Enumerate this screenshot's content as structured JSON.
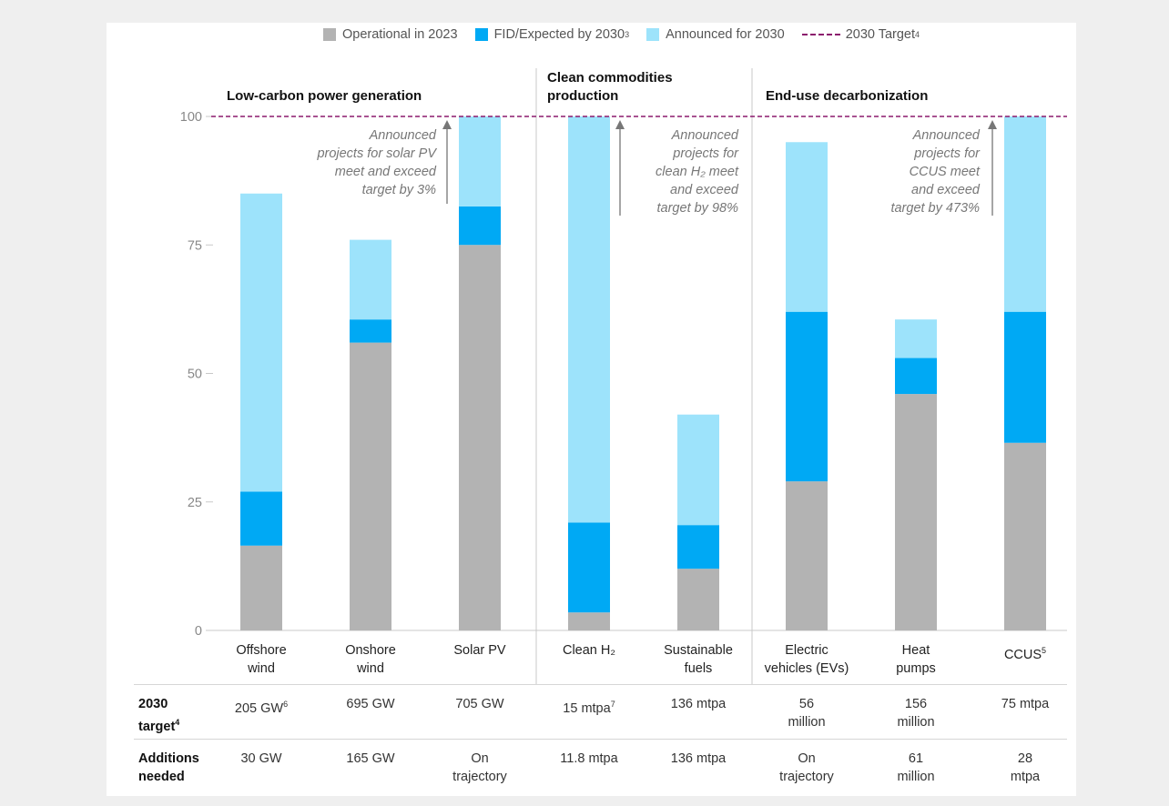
{
  "legend": {
    "operational": "Operational in 2023",
    "fid": "FID/Expected by 2030",
    "fid_sup": "3",
    "announced": "Announced for 2030",
    "target": "2030 Target",
    "target_sup": "4"
  },
  "groups": [
    {
      "title": "Low-carbon power generation"
    },
    {
      "title_line1": "Clean commodities",
      "title_line2": "production"
    },
    {
      "title": "End-use decarbonization"
    }
  ],
  "annotations": [
    [
      "Announced",
      "projects for solar PV",
      "meet and exceed",
      "target by 3%"
    ],
    [
      "Announced",
      "projects for",
      "clean H₂ meet",
      "and exceed",
      "target by 98%"
    ],
    [
      "Announced",
      "projects for",
      "CCUS meet",
      "and exceed",
      "target by 473%"
    ]
  ],
  "categories": [
    {
      "line1": "Offshore",
      "line2": "wind"
    },
    {
      "line1": "Onshore",
      "line2": "wind"
    },
    {
      "line1": "Solar PV",
      "line2": ""
    },
    {
      "line1": "Clean H₂",
      "line2": ""
    },
    {
      "line1": "Sustainable",
      "line2": "fuels"
    },
    {
      "line1": "Electric",
      "line2": "vehicles (EVs)"
    },
    {
      "line1": "Heat",
      "line2": "pumps"
    },
    {
      "line1": "CCUS",
      "line1_sup": "5",
      "line2": ""
    }
  ],
  "table": {
    "row1_label_1": "2030",
    "row1_label_2": "target",
    "row1_label_sup": "4",
    "row2_label_1": "Additions",
    "row2_label_2": "needed",
    "targets": [
      {
        "line1": "205 GW",
        "sup": "6",
        "line2": ""
      },
      {
        "line1": "695 GW",
        "line2": ""
      },
      {
        "line1": "705 GW",
        "line2": ""
      },
      {
        "line1": "15 mtpa",
        "sup": "7",
        "line2": ""
      },
      {
        "line1": "136 mtpa",
        "line2": ""
      },
      {
        "line1": "56",
        "line2": "million"
      },
      {
        "line1": "156",
        "line2": "million"
      },
      {
        "line1": "75 mtpa",
        "line2": ""
      }
    ],
    "additions": [
      {
        "line1": "30 GW",
        "line2": ""
      },
      {
        "line1": "165 GW",
        "line2": ""
      },
      {
        "line1": "On",
        "line2": "trajectory"
      },
      {
        "line1": "11.8 mtpa",
        "line2": ""
      },
      {
        "line1": "136 mtpa",
        "line2": ""
      },
      {
        "line1": "On",
        "line2": "trajectory"
      },
      {
        "line1": "61",
        "line2": "million"
      },
      {
        "line1": "28",
        "line2": "mtpa"
      }
    ]
  },
  "colors": {
    "operational": "#b3b3b3",
    "fid": "#00a9f4",
    "announced": "#9de3fb",
    "target": "#8b1a6d",
    "arrow": "#777777"
  },
  "chart_data": {
    "type": "bar",
    "stacked": true,
    "categories": [
      "Offshore wind",
      "Onshore wind",
      "Solar PV",
      "Clean H₂",
      "Sustainable fuels",
      "Electric vehicles (EVs)",
      "Heat pumps",
      "CCUS"
    ],
    "series": [
      {
        "name": "Operational in 2023",
        "values": [
          16.5,
          56,
          75,
          3.5,
          12,
          29,
          46,
          36.5
        ]
      },
      {
        "name": "FID/Expected by 2030",
        "values": [
          10.5,
          4.5,
          7.5,
          17.5,
          8.5,
          33,
          7,
          25.5
        ]
      },
      {
        "name": "Announced for 2030",
        "values": [
          58,
          15.5,
          17.5,
          79,
          21.5,
          33,
          7.5,
          38
        ]
      }
    ],
    "target_line": 100,
    "yticks": [
      0,
      25,
      50,
      75,
      100
    ],
    "ylim": [
      0,
      100
    ],
    "legend_position": "top-right",
    "grid": false
  }
}
